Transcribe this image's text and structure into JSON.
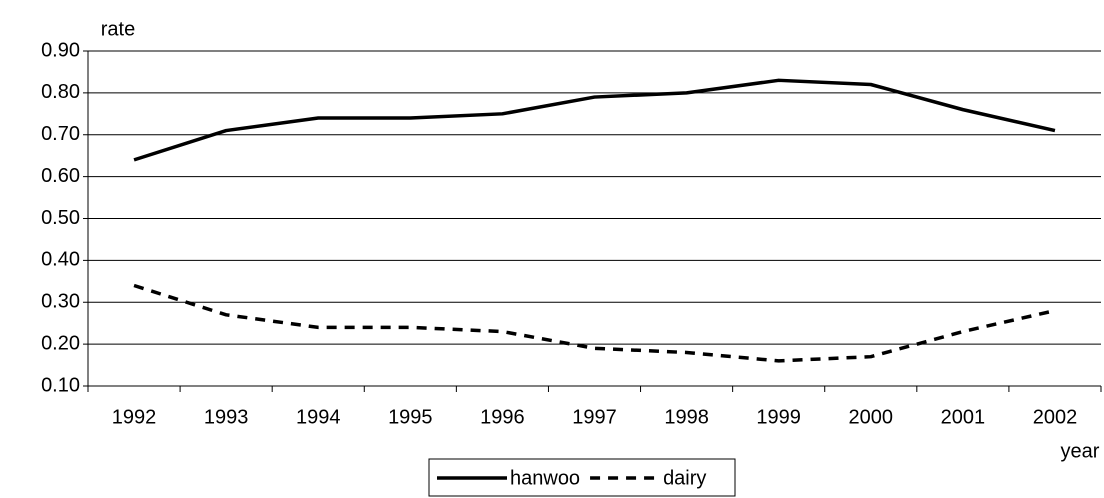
{
  "chart_data": {
    "type": "line",
    "y_label": "rate",
    "x_label": "year",
    "categories": [
      "1992",
      "1993",
      "1994",
      "1995",
      "1996",
      "1997",
      "1998",
      "1999",
      "2000",
      "2001",
      "2002"
    ],
    "series": [
      {
        "name": "hanwoo",
        "color": "#000000",
        "dash": "solid",
        "values": [
          0.64,
          0.71,
          0.74,
          0.74,
          0.75,
          0.79,
          0.8,
          0.83,
          0.82,
          0.76,
          0.71
        ]
      },
      {
        "name": "dairy",
        "color": "#000000",
        "dash": "dashed",
        "values": [
          0.34,
          0.27,
          0.24,
          0.24,
          0.23,
          0.19,
          0.18,
          0.16,
          0.17,
          0.23,
          0.28
        ]
      }
    ],
    "ylim": [
      0.1,
      0.9
    ],
    "yticks": [
      {
        "value": 0.1,
        "label": "0.10"
      },
      {
        "value": 0.2,
        "label": "0.20"
      },
      {
        "value": 0.3,
        "label": "0.30"
      },
      {
        "value": 0.4,
        "label": "0.40"
      },
      {
        "value": 0.5,
        "label": "0.50"
      },
      {
        "value": 0.6,
        "label": "0.60"
      },
      {
        "value": 0.7,
        "label": "0.70"
      },
      {
        "value": 0.8,
        "label": "0.80"
      },
      {
        "value": 0.9,
        "label": "0.90"
      }
    ],
    "grid": true,
    "legend": "bottom"
  }
}
